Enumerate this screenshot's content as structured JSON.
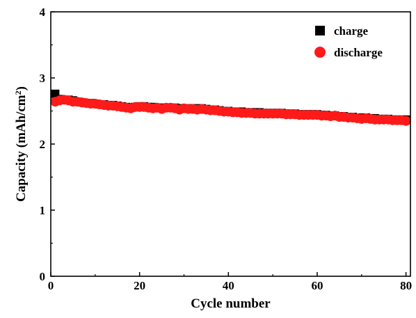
{
  "chart_data": {
    "type": "scatter",
    "xlabel": "Cycle number",
    "ylabel_main": "Capacity (mAh/cm",
    "ylabel_sup": "2",
    "ylabel_close": ")",
    "xlim": [
      0,
      81
    ],
    "ylim": [
      0,
      4
    ],
    "xticks": [
      0,
      20,
      40,
      60,
      80
    ],
    "yticks": [
      0,
      1,
      2,
      3,
      4
    ],
    "grid": false,
    "legend_position": "top-right",
    "series": [
      {
        "name": "charge",
        "marker": "square",
        "color": "#000000",
        "x": [
          1,
          2,
          3,
          4,
          5,
          6,
          7,
          8,
          9,
          10,
          11,
          12,
          13,
          14,
          15,
          16,
          17,
          18,
          19,
          20,
          21,
          22,
          23,
          24,
          25,
          26,
          27,
          28,
          29,
          30,
          31,
          32,
          33,
          34,
          35,
          36,
          37,
          38,
          39,
          40,
          41,
          42,
          43,
          44,
          45,
          46,
          47,
          48,
          49,
          50,
          51,
          52,
          53,
          54,
          55,
          56,
          57,
          58,
          59,
          60,
          61,
          62,
          63,
          64,
          65,
          66,
          67,
          68,
          69,
          70,
          71,
          72,
          73,
          74,
          75,
          76,
          77,
          78,
          79,
          80
        ],
        "y": [
          2.76,
          2.68,
          2.67,
          2.67,
          2.66,
          2.64,
          2.63,
          2.62,
          2.62,
          2.61,
          2.6,
          2.6,
          2.59,
          2.59,
          2.58,
          2.57,
          2.56,
          2.55,
          2.56,
          2.57,
          2.57,
          2.56,
          2.56,
          2.55,
          2.55,
          2.55,
          2.55,
          2.55,
          2.54,
          2.54,
          2.54,
          2.54,
          2.54,
          2.54,
          2.53,
          2.52,
          2.52,
          2.51,
          2.5,
          2.5,
          2.49,
          2.49,
          2.49,
          2.48,
          2.48,
          2.48,
          2.48,
          2.47,
          2.47,
          2.47,
          2.47,
          2.47,
          2.46,
          2.46,
          2.46,
          2.45,
          2.45,
          2.45,
          2.45,
          2.45,
          2.44,
          2.44,
          2.43,
          2.43,
          2.42,
          2.42,
          2.41,
          2.41,
          2.4,
          2.4,
          2.4,
          2.39,
          2.39,
          2.38,
          2.38,
          2.38,
          2.37,
          2.37,
          2.37,
          2.37
        ]
      },
      {
        "name": "discharge",
        "marker": "circle",
        "color": "#ff1a1a",
        "x": [
          1,
          2,
          3,
          4,
          5,
          6,
          7,
          8,
          9,
          10,
          11,
          12,
          13,
          14,
          15,
          16,
          17,
          18,
          19,
          20,
          21,
          22,
          23,
          24,
          25,
          26,
          27,
          28,
          29,
          30,
          31,
          32,
          33,
          34,
          35,
          36,
          37,
          38,
          39,
          40,
          41,
          42,
          43,
          44,
          45,
          46,
          47,
          48,
          49,
          50,
          51,
          52,
          53,
          54,
          55,
          56,
          57,
          58,
          59,
          60,
          61,
          62,
          63,
          64,
          65,
          66,
          67,
          68,
          69,
          70,
          71,
          72,
          73,
          74,
          75,
          76,
          77,
          78,
          79,
          80
        ],
        "y": [
          2.64,
          2.66,
          2.67,
          2.66,
          2.64,
          2.64,
          2.63,
          2.62,
          2.61,
          2.61,
          2.6,
          2.59,
          2.58,
          2.58,
          2.57,
          2.56,
          2.55,
          2.54,
          2.56,
          2.56,
          2.56,
          2.55,
          2.54,
          2.55,
          2.53,
          2.55,
          2.55,
          2.54,
          2.52,
          2.54,
          2.53,
          2.53,
          2.52,
          2.53,
          2.52,
          2.51,
          2.51,
          2.5,
          2.49,
          2.49,
          2.48,
          2.48,
          2.47,
          2.47,
          2.47,
          2.46,
          2.46,
          2.46,
          2.46,
          2.46,
          2.46,
          2.46,
          2.45,
          2.45,
          2.45,
          2.44,
          2.44,
          2.44,
          2.44,
          2.44,
          2.43,
          2.43,
          2.42,
          2.43,
          2.41,
          2.41,
          2.4,
          2.4,
          2.39,
          2.38,
          2.39,
          2.38,
          2.37,
          2.37,
          2.37,
          2.37,
          2.36,
          2.36,
          2.36,
          2.35
        ]
      }
    ]
  }
}
